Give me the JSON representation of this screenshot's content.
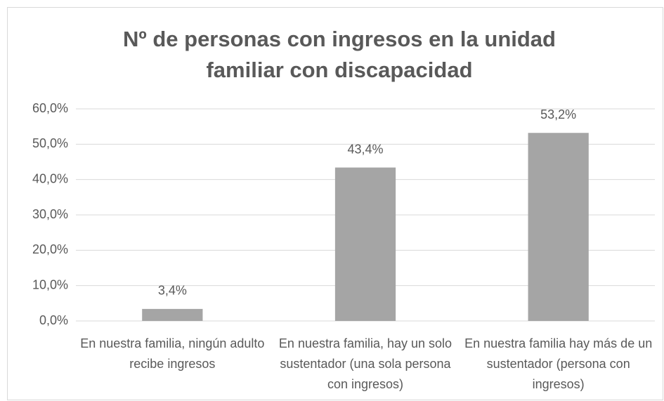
{
  "chart_data": {
    "type": "bar",
    "title": "Nº de personas con ingresos en la unidad familiar con discapacidad",
    "categories": [
      "En nuestra familia, ningún adulto recibe ingresos",
      "En nuestra familia, hay un solo sustentador (una sola persona con ingresos)",
      "En nuestra familia hay más de un sustentador (persona con ingresos)"
    ],
    "values": [
      3.4,
      43.4,
      53.2
    ],
    "value_labels": [
      "3,4%",
      "43,4%",
      "53,2%"
    ],
    "color": "#a5a5a5",
    "ylim": [
      0,
      60
    ],
    "yticks": [
      {
        "value": 0,
        "label": "0,0%"
      },
      {
        "value": 10,
        "label": "10,0%"
      },
      {
        "value": 20,
        "label": "20,0%"
      },
      {
        "value": 30,
        "label": "30,0%"
      },
      {
        "value": 40,
        "label": "40,0%"
      },
      {
        "value": 50,
        "label": "50,0%"
      },
      {
        "value": 60,
        "label": "60,0%"
      }
    ],
    "grid": true
  }
}
